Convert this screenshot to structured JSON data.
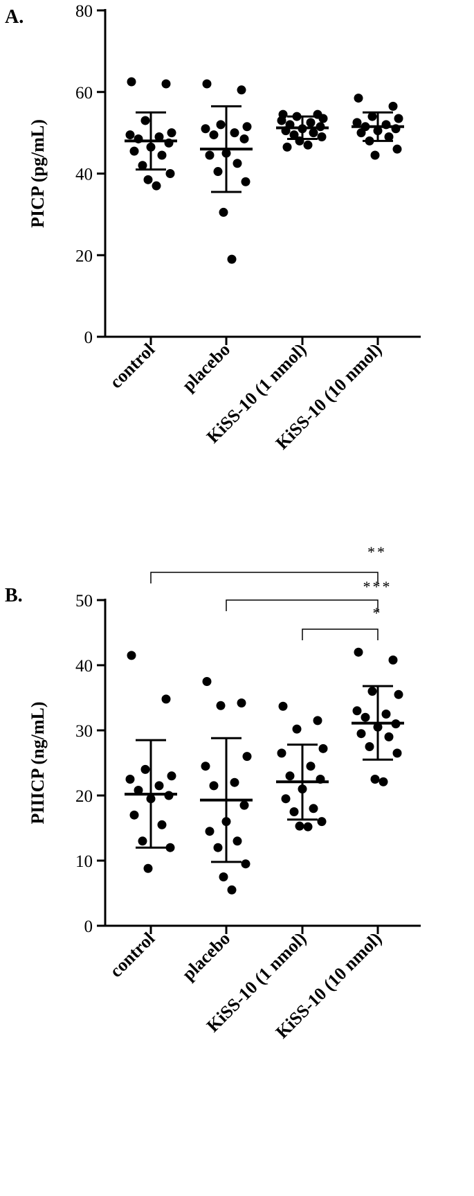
{
  "chart_data": [
    {
      "type": "scatter",
      "panel_label": "A.",
      "ylabel": "PICP (pg/mL)",
      "ylim": [
        0,
        80
      ],
      "yticks": [
        0,
        20,
        40,
        60,
        80
      ],
      "categories": [
        "control",
        "placebo",
        "KiSS-10 (1 nmol)",
        "KiSS-10 (10 nmol)"
      ],
      "groups": [
        {
          "category": "control",
          "mean": 48.0,
          "sd_low": 41.0,
          "sd_high": 55.0,
          "values": [
            62.5,
            62.0,
            53.0,
            50.0,
            49.5,
            49.0,
            48.5,
            47.5,
            46.5,
            45.5,
            44.5,
            42.0,
            40.0,
            38.5,
            37.0
          ]
        },
        {
          "category": "placebo",
          "mean": 46.0,
          "sd_low": 35.5,
          "sd_high": 56.5,
          "values": [
            62.0,
            60.5,
            52.0,
            51.5,
            51.0,
            50.0,
            49.5,
            48.5,
            45.0,
            44.5,
            42.5,
            40.5,
            38.0,
            30.5,
            19.0
          ]
        },
        {
          "category": "KiSS-10 (1 nmol)",
          "mean": 51.2,
          "sd_low": 48.5,
          "sd_high": 54.0,
          "values": [
            54.5,
            54.5,
            54.0,
            53.5,
            53.0,
            52.5,
            52.0,
            51.5,
            51.0,
            50.5,
            50.0,
            49.5,
            49.0,
            48.0,
            47.0,
            46.5
          ]
        },
        {
          "category": "KiSS-10 (10 nmol)",
          "mean": 51.5,
          "sd_low": 48.0,
          "sd_high": 55.0,
          "values": [
            58.5,
            56.5,
            54.0,
            53.5,
            52.5,
            52.0,
            51.5,
            51.0,
            50.5,
            50.0,
            49.0,
            48.0,
            46.0,
            44.5
          ]
        }
      ],
      "significance": []
    },
    {
      "type": "scatter",
      "panel_label": "B.",
      "ylabel": "PIIICP (ng/mL)",
      "ylim": [
        0,
        50
      ],
      "yticks": [
        0,
        10,
        20,
        30,
        40,
        50
      ],
      "categories": [
        "control",
        "placebo",
        "KiSS-10 (1 nmol)",
        "KiSS-10 (10 nmol)"
      ],
      "groups": [
        {
          "category": "control",
          "mean": 20.2,
          "sd_low": 12.0,
          "sd_high": 28.5,
          "values": [
            41.5,
            34.8,
            24.0,
            23.0,
            22.5,
            21.5,
            20.8,
            20.0,
            19.5,
            17.0,
            15.5,
            13.0,
            12.0,
            8.8
          ]
        },
        {
          "category": "placebo",
          "mean": 19.3,
          "sd_low": 9.8,
          "sd_high": 28.8,
          "values": [
            37.5,
            34.2,
            33.8,
            26.0,
            24.5,
            22.0,
            21.5,
            18.5,
            16.0,
            14.5,
            13.0,
            12.0,
            9.5,
            7.5,
            5.5
          ]
        },
        {
          "category": "KiSS-10 (1 nmol)",
          "mean": 22.1,
          "sd_low": 16.3,
          "sd_high": 27.8,
          "values": [
            33.7,
            31.5,
            30.2,
            27.2,
            26.5,
            24.5,
            23.0,
            22.5,
            21.0,
            19.5,
            18.0,
            17.5,
            16.0,
            15.3,
            15.2
          ]
        },
        {
          "category": "KiSS-10 (10 nmol)",
          "mean": 31.1,
          "sd_low": 25.5,
          "sd_high": 36.8,
          "values": [
            42.0,
            40.8,
            36.0,
            35.5,
            33.0,
            32.5,
            32.0,
            31.0,
            30.5,
            29.5,
            29.0,
            27.5,
            26.5,
            22.5,
            22.1
          ]
        }
      ],
      "significance": [
        {
          "from": "control",
          "to": "KiSS-10 (10 nmol)",
          "label": "**"
        },
        {
          "from": "placebo",
          "to": "KiSS-10 (10 nmol)",
          "label": "***"
        },
        {
          "from": "KiSS-10 (1 nmol)",
          "to": "KiSS-10 (10 nmol)",
          "label": "*"
        }
      ]
    }
  ],
  "colors": {
    "points": "#000000",
    "axes": "#000000"
  }
}
